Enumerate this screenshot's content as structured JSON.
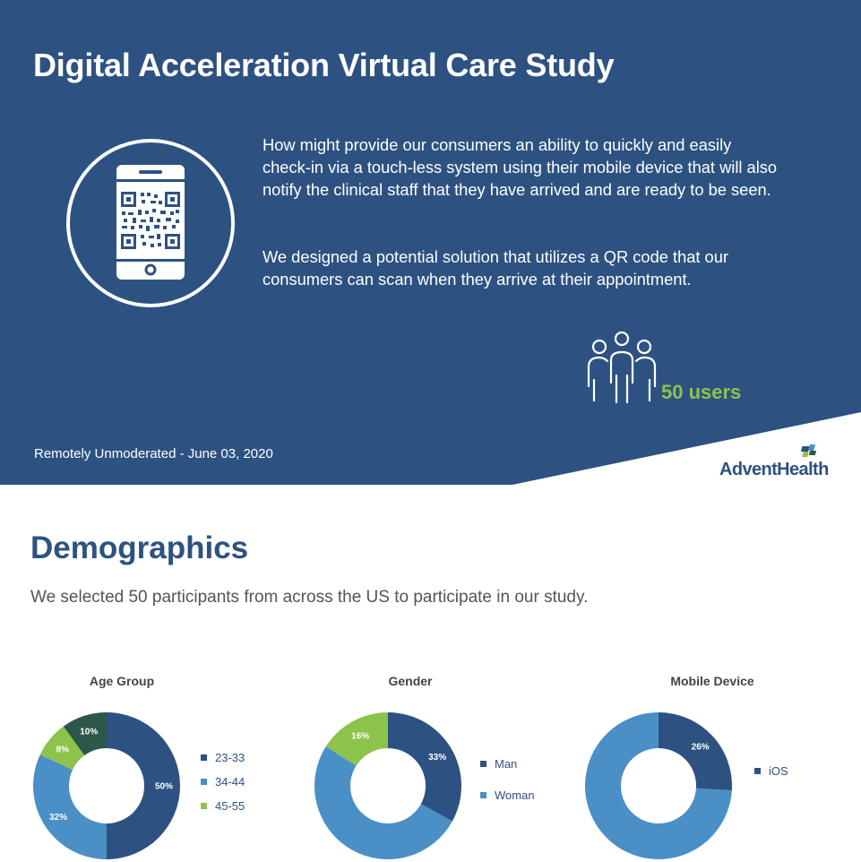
{
  "hero": {
    "title": "Digital Acceleration Virtual Care Study",
    "paragraph_1": "How might provide our consumers an ability to quickly and easily check-in via a touch-less system using their mobile device that will also notify the clinical staff that they have arrived and are ready to be seen.",
    "paragraph_2": "We designed a potential solution that utilizes a QR code that our consumers can scan when they arrive at their appointment.",
    "users_count": "50 users",
    "session": "Remotely Unmoderated - June 03, 2020",
    "brand": "AdventHealth",
    "icons": [
      "phone-qr-icon",
      "users-group-icon",
      "adventhealth-logo"
    ]
  },
  "demographics": {
    "title": "Demographics",
    "subtitle": "We selected 50 participants from across the US to participate in our study."
  },
  "colors": {
    "navy": "#2d5281",
    "blue": "#4a8fc6",
    "green": "#8cc34a",
    "dark_green": "#2d5749"
  },
  "chart_data": [
    {
      "type": "pie",
      "title": "Age Group",
      "categories": [
        "23-33",
        "34-44",
        "45-55",
        ""
      ],
      "values": [
        50,
        32,
        8,
        10
      ],
      "labels": [
        "50%",
        "32%",
        "8%",
        "10%"
      ],
      "colors": [
        "#2d5281",
        "#4a8fc6",
        "#8cc34a",
        "#2d5749"
      ],
      "legend_position": "right"
    },
    {
      "type": "pie",
      "title": "Gender",
      "categories": [
        "Man",
        "Woman",
        ""
      ],
      "values": [
        33,
        51,
        16
      ],
      "labels": [
        "33%",
        "",
        "16%"
      ],
      "colors": [
        "#2d5281",
        "#4a8fc6",
        "#8cc34a"
      ],
      "legend_position": "right"
    },
    {
      "type": "pie",
      "title": "Mobile Device",
      "categories": [
        "iOS",
        ""
      ],
      "values": [
        26,
        74
      ],
      "labels": [
        "26%",
        ""
      ],
      "colors": [
        "#2d5281",
        "#4a8fc6"
      ],
      "legend_position": "right"
    }
  ]
}
